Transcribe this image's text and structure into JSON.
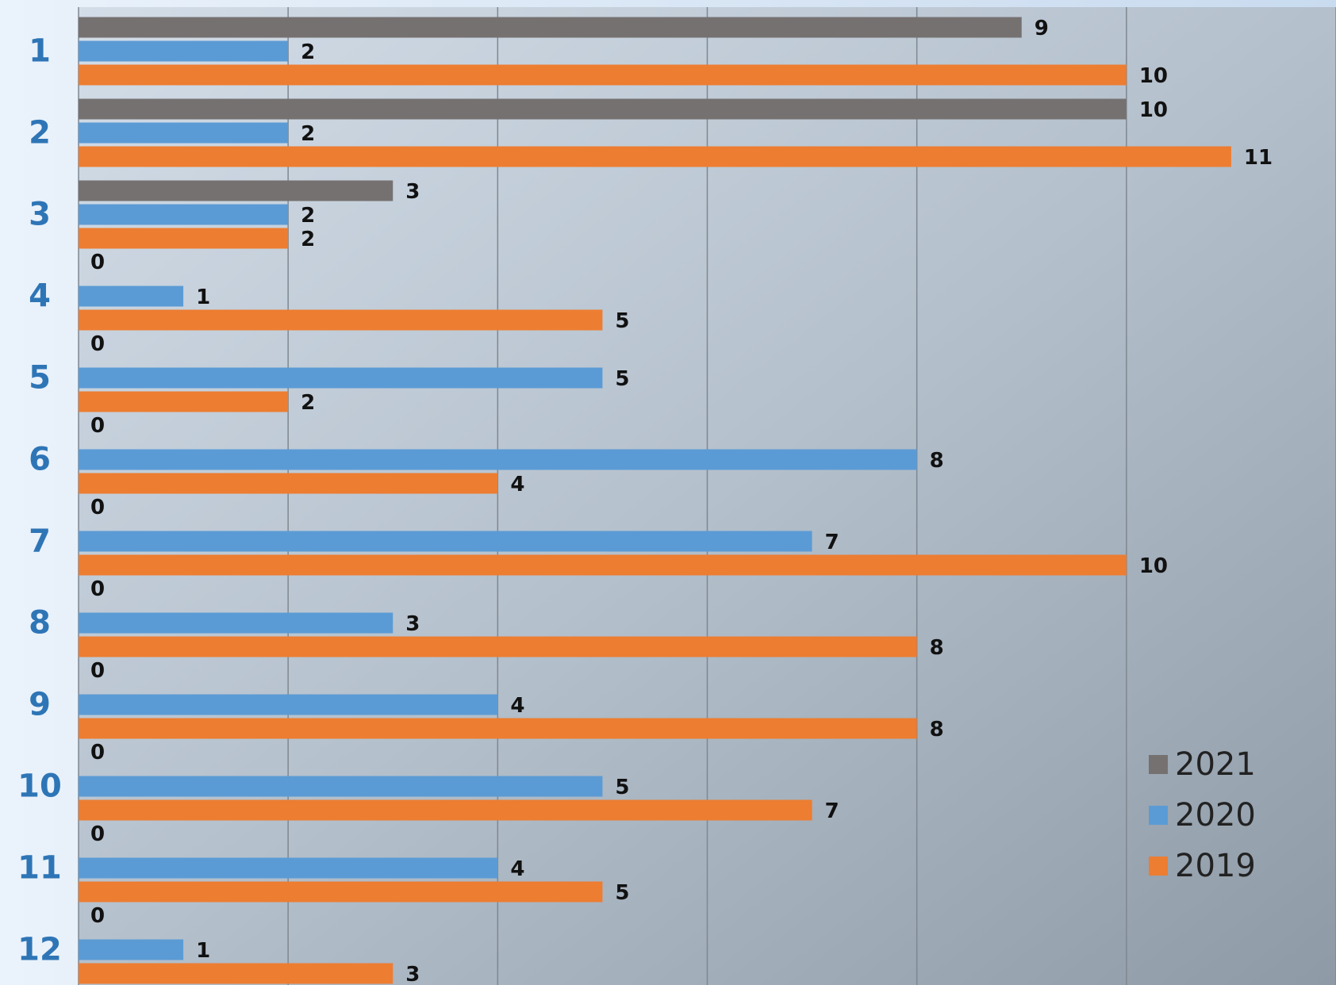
{
  "chart_data": {
    "type": "bar",
    "orientation": "horizontal",
    "categories": [
      "1",
      "2",
      "3",
      "4",
      "5",
      "6",
      "7",
      "8",
      "9",
      "10",
      "11",
      "12"
    ],
    "series": [
      {
        "name": "2021",
        "color": "#767171",
        "values": [
          9,
          10,
          3,
          0,
          0,
          0,
          0,
          0,
          0,
          0,
          0,
          0
        ]
      },
      {
        "name": "2020",
        "color": "#5b9bd5",
        "values": [
          2,
          2,
          2,
          1,
          5,
          8,
          7,
          3,
          4,
          5,
          4,
          1
        ]
      },
      {
        "name": "2019",
        "color": "#ed7d31",
        "values": [
          10,
          11,
          2,
          5,
          2,
          4,
          10,
          8,
          8,
          7,
          5,
          3
        ]
      }
    ],
    "xlim": [
      0,
      12
    ],
    "xticks": [
      0,
      2,
      4,
      6,
      8,
      10,
      12
    ],
    "grid": true,
    "legend": "lower right"
  }
}
